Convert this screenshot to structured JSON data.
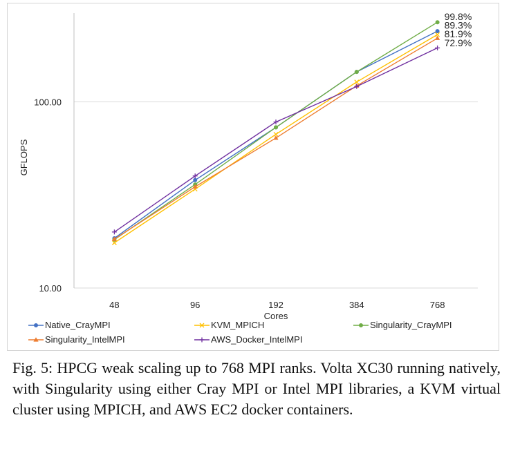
{
  "chart_data": {
    "type": "line",
    "xlabel": "Cores",
    "ylabel": "GFLOPS",
    "yscale": "log",
    "ylim": [
      10,
      300
    ],
    "y_ticks": [
      10,
      100
    ],
    "y_tick_labels": [
      "10.00",
      "100.00"
    ],
    "grid": "horizontal",
    "categories": [
      "48",
      "96",
      "192",
      "384",
      "768"
    ],
    "legend_position": "bottom",
    "series": [
      {
        "name": "Native_CrayMPI",
        "color": "#4472c4",
        "marker": "dot",
        "values": [
          18.5,
          38,
          73,
          145,
          240
        ]
      },
      {
        "name": "KVM_MPICH",
        "color": "#ffc000",
        "marker": "cross",
        "values": [
          17.5,
          34,
          67,
          128,
          230
        ]
      },
      {
        "name": "Singularity_CrayMPI",
        "color": "#70ad47",
        "marker": "dot",
        "values": [
          18.2,
          36,
          73,
          145,
          268
        ]
      },
      {
        "name": "Singularity_IntelMPI",
        "color": "#ed7d31",
        "marker": "triangle",
        "values": [
          18.3,
          35,
          64,
          122,
          220
        ]
      },
      {
        "name": "AWS_Docker_IntelMPI",
        "color": "#7030a0",
        "marker": "plus",
        "values": [
          20,
          40,
          78,
          121,
          195
        ]
      }
    ],
    "end_labels": [
      "99.8%",
      "89.3%",
      "81.9%",
      "72.9%"
    ]
  },
  "caption": "Fig. 5: HPCG weak scaling up to 768 MPI ranks. Volta XC30 running natively, with Singularity using either Cray MPI or Intel MPI libraries, a KVM virtual cluster using MPICH, and AWS EC2 docker containers."
}
